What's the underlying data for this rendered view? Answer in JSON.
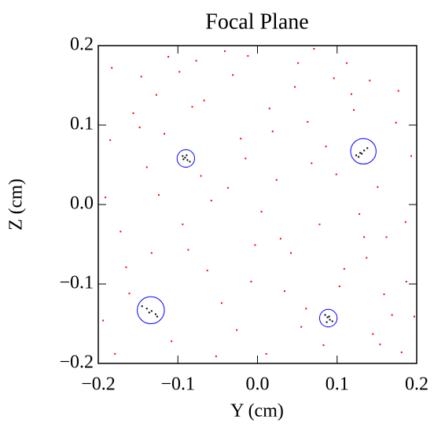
{
  "chart_data": {
    "type": "scatter",
    "title": "Focal Plane",
    "x_label": "Y (cm)",
    "y_label": "Z (cm)",
    "xlim": [
      -0.2,
      0.2
    ],
    "ylim": [
      -0.2,
      0.2
    ],
    "xticks": [
      {
        "value": -0.2,
        "label": "−0.2"
      },
      {
        "value": -0.1,
        "label": "−0.1"
      },
      {
        "value": 0,
        "label": "0.0"
      },
      0.1,
      0.2
    ],
    "yticks": [
      {
        "value": -0.2,
        "label": "−0.2"
      },
      {
        "value": -0.1,
        "label": "−0.1"
      },
      {
        "value": 0,
        "label": "0.0"
      },
      0.1,
      0.2
    ],
    "series": [
      {
        "color": "#ff0000",
        "x": [
          -0.183,
          0.042,
          -0.067,
          0.151,
          0.011,
          -0.139,
          0.187,
          -0.021,
          0.096,
          -0.172,
          0.063,
          -0.108,
          0.128,
          -0.045,
          0.177,
          -0.156,
          0.024,
          0.109,
          -0.087,
          0.145,
          -0.012,
          -0.194,
          0.071,
          0.193,
          -0.124,
          0.034,
          -0.058,
          0.162,
          -0.031,
          0.086,
          -0.165,
          0.118,
          -0.003,
          0.055,
          -0.117,
          0.181,
          -0.077,
          0.137,
          -0.148,
          0.015,
          0.005,
          -0.098,
          0.169,
          -0.052,
          0.121,
          -0.185,
          0.078,
          -0.008,
          0.154,
          -0.133,
          0.047,
          -0.071,
          0.099,
          -0.161,
          0.186,
          -0.026,
          0.134,
          -0.112,
          0.061,
          -0.041,
          0.112,
          -0.179,
          0.029,
          -0.094,
          0.174,
          -0.063,
          0.141,
          -0.015,
          0.083,
          -0.146,
          0.197,
          -0.037,
          0.068,
          -0.127,
          0.159,
          -0.082,
          0.019,
          0.103,
          -0.191,
          0.051
        ],
        "y": [
          0.172,
          -0.061,
          0.131,
          0.022,
          -0.188,
          0.047,
          -0.097,
          0.083,
          0.159,
          -0.034,
          0.104,
          -0.172,
          -0.012,
          -0.124,
          0.143,
          0.115,
          0.031,
          -0.081,
          -0.057,
          -0.163,
          0.187,
          -0.146,
          0.196,
          0.061,
          0.012,
          -0.109,
          0.005,
          -0.041,
          0.163,
          0.073,
          -0.079,
          0.139,
          -0.051,
          -0.154,
          0.089,
          -0.186,
          0.181,
          -0.067,
          0.097,
          0.121,
          -0.009,
          0.167,
          -0.139,
          -0.191,
          0.119,
          0.081,
          -0.025,
          -0.097,
          -0.176,
          -0.061,
          0.148,
          0.036,
          0.038,
          -0.112,
          -0.022,
          -0.158,
          -0.041,
          0.186,
          -0.131,
          0.193,
          0.178,
          -0.188,
          -0.043,
          -0.025,
          0.103,
          -0.083,
          0.156,
          0.058,
          -0.177,
          0.161,
          -0.141,
          0.021,
          0.052,
          0.138,
          -0.113,
          0.123,
          0.092,
          -0.103,
          0.009,
          0.178
        ]
      },
      {
        "color": "#000000",
        "x": [
          -0.094,
          -0.088,
          -0.091,
          -0.085,
          -0.093,
          -0.089,
          0.124,
          0.129,
          0.134,
          0.138,
          0.131,
          0.127,
          -0.145,
          -0.139,
          -0.133,
          -0.128,
          -0.136,
          -0.126,
          0.085,
          0.088,
          0.091,
          0.094,
          0.087,
          0.09
        ],
        "y": [
          0.061,
          0.056,
          0.059,
          0.054,
          0.057,
          0.062,
          0.062,
          0.065,
          0.068,
          0.071,
          0.064,
          0.06,
          -0.128,
          -0.131,
          -0.134,
          -0.138,
          -0.136,
          -0.141,
          -0.139,
          -0.142,
          -0.145,
          -0.147,
          -0.148,
          -0.141
        ]
      }
    ],
    "circles": [
      {
        "x": -0.09,
        "y": 0.058,
        "r": 0.011,
        "color": "#0000ff"
      },
      {
        "x": 0.133,
        "y": 0.067,
        "r": 0.016,
        "color": "#0000ff"
      },
      {
        "x": -0.134,
        "y": -0.133,
        "r": 0.017,
        "color": "#0000ff"
      },
      {
        "x": 0.089,
        "y": -0.143,
        "r": 0.011,
        "color": "#0000ff"
      }
    ]
  }
}
